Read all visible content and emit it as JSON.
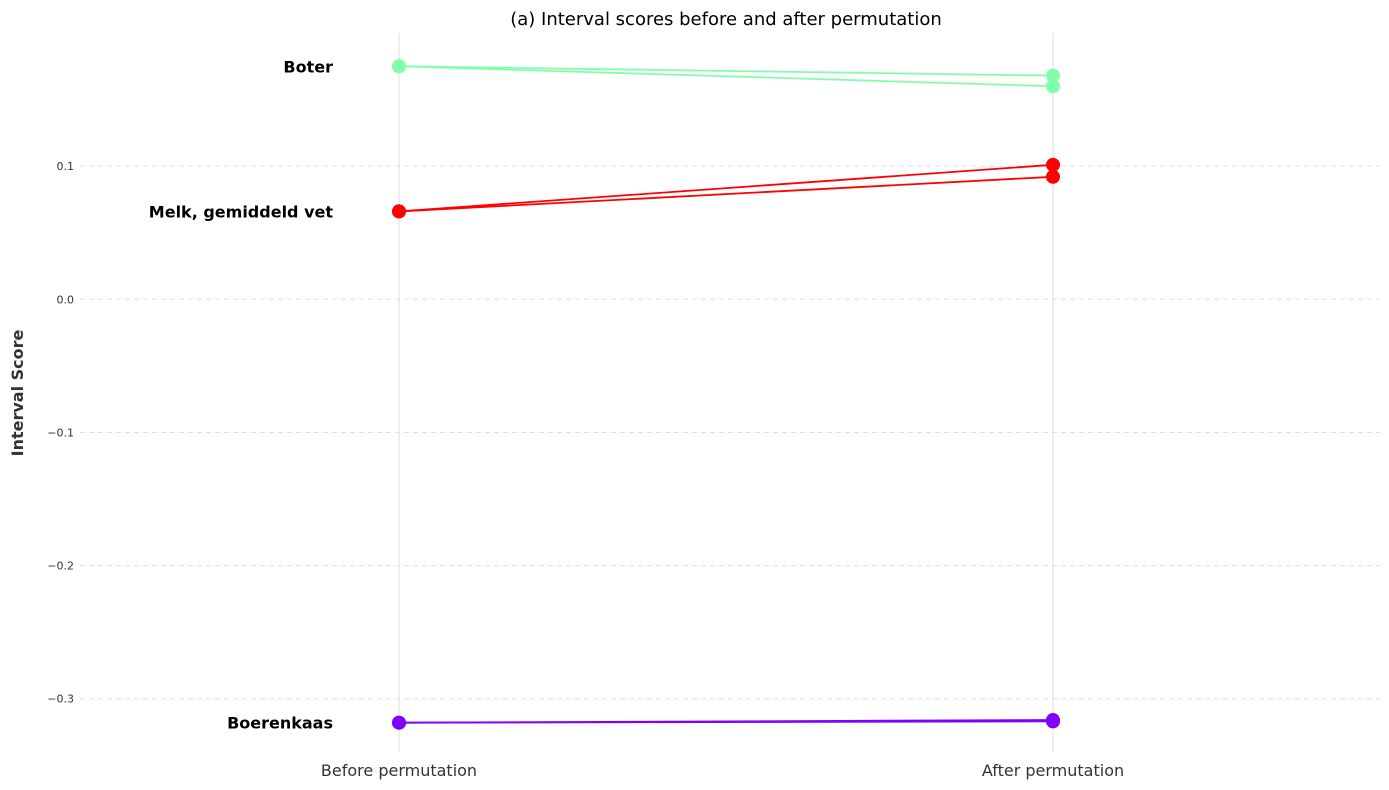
{
  "chart_data": {
    "type": "line",
    "title": "(a) Interval scores before and after permutation",
    "xlabel": "",
    "ylabel": "Interval Score",
    "categories": [
      "Before permutation",
      "After permutation"
    ],
    "ylim": [
      -0.34,
      0.2
    ],
    "yticks": [
      0.1,
      0.0,
      -0.1,
      -0.2,
      -0.3
    ],
    "ytick_labels": [
      "0.1",
      "0.0",
      "−0.1",
      "−0.2",
      "−0.3"
    ],
    "grid": "horizontal dashed",
    "series": [
      {
        "group": "Boter",
        "color": "#80ffaa",
        "values": [
          0.175,
          0.168
        ]
      },
      {
        "group": "Boter",
        "color": "#80ffaa",
        "values": [
          0.175,
          0.16
        ]
      },
      {
        "group": "Melk, gemiddeld vet",
        "color": "#ff0000",
        "values": [
          0.066,
          0.101
        ]
      },
      {
        "group": "Melk, gemiddeld vet",
        "color": "#ff0000",
        "values": [
          0.066,
          0.092
        ]
      },
      {
        "group": "Boerenkaas",
        "color": "#8000ff",
        "values": [
          -0.318,
          -0.316
        ]
      },
      {
        "group": "Boerenkaas",
        "color": "#8000ff",
        "values": [
          -0.318,
          -0.317
        ]
      }
    ],
    "annotations": [
      {
        "text": "Boter",
        "y": 0.175
      },
      {
        "text": "Melk, gemiddeld vet",
        "y": 0.066
      },
      {
        "text": "Boerenkaas",
        "y": -0.318
      }
    ]
  }
}
